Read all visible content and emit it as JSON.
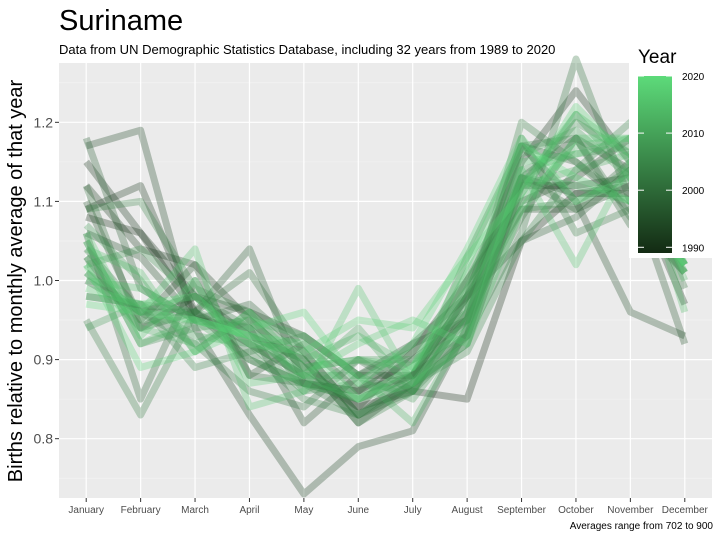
{
  "chart_data": {
    "type": "line",
    "title": "Suriname",
    "subtitle": "Data from UN Demographic Statistics Database, including 32 years from 1989 to 2020",
    "xlabel": "",
    "ylabel": "Births relative to monthly average of that year",
    "caption": "Averages range from 702 to 900",
    "categories": [
      "January",
      "February",
      "March",
      "April",
      "May",
      "June",
      "July",
      "August",
      "September",
      "October",
      "November",
      "December"
    ],
    "ylim": [
      0.725,
      1.275
    ],
    "yticks": [
      0.8,
      0.9,
      1.0,
      1.1,
      1.2
    ],
    "ytick_labels": [
      "0.8",
      "0.9",
      "1.0",
      "1.1",
      "1.2"
    ],
    "grid": true,
    "legend": {
      "title": "Year",
      "position": "right",
      "range": [
        1989,
        2020
      ],
      "ticks": [
        1990,
        2000,
        2010,
        2020
      ],
      "color_low": "#132b13",
      "color_high": "#5ddb7a"
    },
    "series": [
      {
        "year": 1989,
        "values": [
          1.08,
          1.06,
          0.96,
          0.92,
          0.88,
          0.84,
          0.86,
          0.85,
          1.05,
          1.11,
          1.11,
          1.02
        ]
      },
      {
        "year": 1990,
        "values": [
          1.15,
          1.06,
          0.98,
          0.93,
          0.9,
          0.82,
          0.87,
          0.92,
          1.12,
          1.12,
          1.13,
          0.97
        ]
      },
      {
        "year": 1991,
        "values": [
          1.09,
          1.12,
          0.96,
          0.9,
          0.87,
          0.86,
          0.9,
          0.95,
          1.15,
          1.24,
          1.15,
          1.08
        ]
      },
      {
        "year": 1992,
        "values": [
          1.12,
          1.04,
          1.02,
          0.95,
          0.89,
          0.84,
          0.91,
          1.0,
          1.1,
          1.13,
          1.18,
          1.06
        ]
      },
      {
        "year": 1993,
        "values": [
          1.03,
          0.94,
          0.98,
          0.96,
          0.93,
          0.88,
          0.88,
          0.93,
          1.13,
          1.18,
          1.14,
          1.03
        ]
      },
      {
        "year": 1994,
        "values": [
          1.17,
          1.19,
          0.94,
          0.83,
          0.73,
          0.79,
          0.81,
          0.94,
          1.13,
          1.11,
          1.12,
          1.09
        ]
      },
      {
        "year": 1995,
        "values": [
          1.06,
          1.03,
          0.95,
          0.94,
          0.82,
          0.88,
          0.92,
          0.98,
          1.17,
          1.1,
          0.96,
          0.93
        ]
      },
      {
        "year": 1996,
        "values": [
          1.1,
          0.95,
          1.02,
          0.88,
          0.92,
          0.86,
          0.88,
          0.98,
          1.09,
          1.09,
          1.12,
          0.92
        ]
      },
      {
        "year": 1997,
        "values": [
          1.0,
          0.96,
          0.96,
          1.04,
          0.87,
          0.85,
          0.88,
          0.95,
          1.17,
          1.15,
          1.09,
          1.01
        ]
      },
      {
        "year": 1998,
        "values": [
          1.18,
          0.99,
          0.95,
          0.97,
          0.91,
          0.83,
          0.88,
          0.98,
          1.05,
          1.08,
          1.14,
          1.04
        ]
      },
      {
        "year": 1999,
        "values": [
          1.06,
          0.85,
          1.0,
          0.88,
          0.87,
          0.86,
          0.92,
          0.95,
          1.08,
          1.18,
          1.07,
          1.06
        ]
      },
      {
        "year": 2000,
        "values": [
          1.12,
          0.94,
          0.96,
          1.01,
          0.91,
          0.83,
          0.86,
          0.98,
          1.13,
          1.09,
          1.15,
          0.99
        ]
      },
      {
        "year": 2001,
        "values": [
          1.01,
          0.96,
          0.92,
          0.86,
          0.84,
          0.9,
          0.86,
          0.93,
          1.06,
          1.28,
          1.1,
          1.07
        ]
      },
      {
        "year": 2002,
        "values": [
          1.04,
          0.96,
          0.98,
          0.94,
          0.87,
          0.83,
          0.87,
          1.03,
          1.17,
          1.18,
          1.08,
          1.01
        ]
      },
      {
        "year": 2003,
        "values": [
          0.95,
          0.83,
          0.96,
          0.91,
          0.93,
          0.88,
          0.91,
          0.96,
          1.18,
          1.06,
          1.09,
          1.03
        ]
      },
      {
        "year": 2004,
        "values": [
          1.09,
          1.1,
          0.99,
          0.96,
          0.9,
          0.82,
          0.86,
          0.96,
          1.2,
          1.15,
          1.1,
          1.02
        ]
      },
      {
        "year": 2005,
        "values": [
          0.98,
          0.97,
          0.89,
          0.91,
          0.85,
          0.83,
          0.87,
          0.91,
          1.05,
          1.14,
          1.2,
          1.03
        ]
      },
      {
        "year": 2006,
        "values": [
          1.05,
          0.92,
          0.94,
          0.95,
          0.89,
          0.9,
          0.88,
          1.0,
          1.12,
          1.2,
          1.16,
          1.04
        ]
      },
      {
        "year": 2007,
        "values": [
          1.02,
          1.04,
          0.98,
          0.92,
          0.86,
          0.87,
          0.86,
          0.96,
          1.09,
          1.1,
          1.14,
          1.02
        ]
      },
      {
        "year": 2008,
        "values": [
          0.94,
          0.97,
          0.96,
          0.94,
          0.88,
          0.88,
          0.85,
          0.94,
          1.11,
          1.21,
          1.13,
          1.05
        ]
      },
      {
        "year": 2009,
        "values": [
          1.07,
          1.0,
          0.91,
          0.96,
          0.86,
          0.9,
          0.9,
          0.93,
          1.14,
          1.16,
          1.17,
          1.03
        ]
      },
      {
        "year": 2010,
        "values": [
          0.98,
          0.97,
          0.93,
          0.92,
          0.88,
          0.94,
          0.86,
          0.99,
          1.16,
          1.19,
          1.13,
          1.01
        ]
      },
      {
        "year": 2011,
        "values": [
          1.02,
          0.95,
          0.95,
          0.9,
          0.87,
          0.85,
          0.88,
          1.01,
          1.12,
          1.14,
          1.16,
          1.03
        ]
      },
      {
        "year": 2012,
        "values": [
          1.01,
          0.94,
          0.92,
          0.95,
          0.93,
          0.88,
          0.82,
          0.94,
          1.13,
          1.12,
          1.1,
          1.05
        ]
      },
      {
        "year": 2013,
        "values": [
          1.05,
          0.92,
          0.95,
          0.93,
          0.9,
          0.93,
          0.89,
          0.97,
          1.12,
          1.21,
          1.16,
          1.0
        ]
      },
      {
        "year": 2014,
        "values": [
          1.04,
          1.01,
          0.91,
          0.96,
          0.89,
          0.9,
          0.89,
          0.99,
          1.1,
          1.17,
          1.18,
          0.96
        ]
      },
      {
        "year": 2015,
        "values": [
          1.0,
          0.99,
          0.95,
          0.93,
          0.88,
          0.85,
          0.87,
          0.95,
          1.15,
          1.16,
          1.18,
          1.02
        ]
      },
      {
        "year": 2016,
        "values": [
          1.03,
          0.96,
          1.04,
          0.84,
          0.86,
          0.99,
          0.87,
          0.92,
          1.14,
          1.02,
          1.15,
          1.06
        ]
      },
      {
        "year": 2017,
        "values": [
          1.06,
          0.93,
          1.0,
          0.87,
          0.88,
          0.92,
          0.95,
          0.92,
          1.09,
          1.18,
          1.18,
          1.05
        ]
      },
      {
        "year": 2018,
        "values": [
          0.99,
          0.97,
          0.98,
          0.92,
          0.91,
          0.95,
          0.94,
          1.03,
          1.11,
          1.22,
          1.15,
          1.01
        ]
      },
      {
        "year": 2019,
        "values": [
          1.02,
          0.89,
          0.91,
          0.94,
          0.96,
          0.87,
          0.92,
          1.04,
          1.18,
          1.1,
          1.13,
          1.02
        ]
      },
      {
        "year": 2020,
        "values": [
          0.97,
          0.96,
          0.95,
          0.93,
          0.92,
          0.85,
          0.89,
          1.02,
          1.17,
          1.13,
          1.1,
          1.02
        ]
      }
    ]
  }
}
